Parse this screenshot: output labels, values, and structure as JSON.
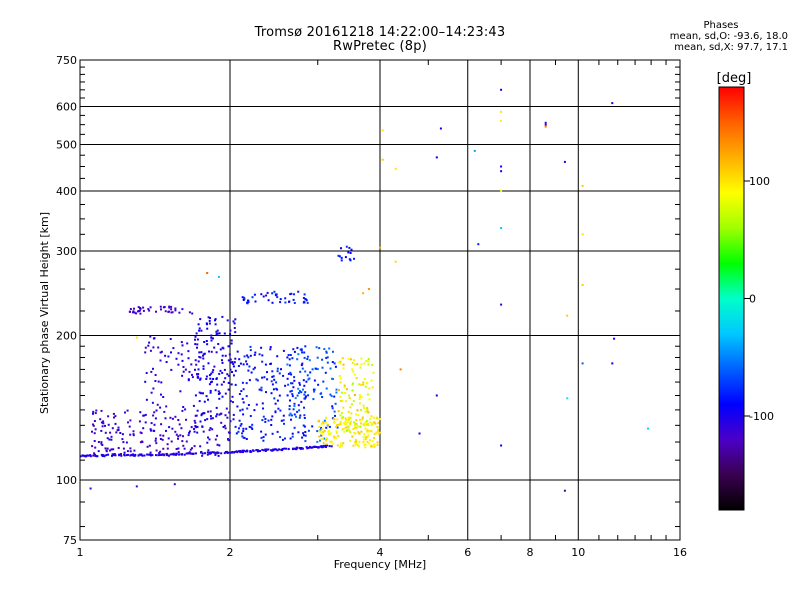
{
  "title": {
    "line1": "Tromsø 20161218 14:22:00–14:23:43",
    "line2": "RwPretec (8p)"
  },
  "phase": {
    "title": "Phases",
    "line1": "mean, sd,O: -93.6, 18.0",
    "line2": "mean, sd,X:  97.7, 17.1"
  },
  "colorbar": {
    "label": "[deg]",
    "ticks": [
      "100",
      "0",
      "-100"
    ],
    "tick_values": [
      100,
      0,
      -100
    ],
    "range": [
      -180,
      180
    ],
    "colors": [
      "#000000",
      "#3a004f",
      "#4b00c8",
      "#0000ff",
      "#0060ff",
      "#00c8ff",
      "#00ffc8",
      "#00ff00",
      "#a0ff00",
      "#ffff00",
      "#ffb000",
      "#ff6000",
      "#ff0000"
    ]
  },
  "chart_data": {
    "type": "scatter",
    "title": "Tromsø 20161218 14:22:00–14:23:43",
    "subtitle": "RwPretec (8p)",
    "xlabel": "Frequency [MHz]",
    "ylabel": "Stationary phase Virtual Height [km]",
    "xscale": "log",
    "yscale": "log",
    "xlim": [
      1,
      16
    ],
    "ylim": [
      75,
      750
    ],
    "xticks": [
      1,
      2,
      4,
      6,
      8,
      10,
      16
    ],
    "xtick_labels": [
      "1",
      "2",
      "4",
      "6",
      "8",
      "10",
      "16"
    ],
    "yticks": [
      75,
      100,
      200,
      300,
      400,
      500,
      600,
      750
    ],
    "ytick_labels": [
      "75",
      "100",
      "200",
      "300",
      "400",
      "500",
      "600",
      "750"
    ],
    "grid": true,
    "color_variable": "phase [deg]",
    "clusters": [
      {
        "x_range": [
          1.0,
          3.2
        ],
        "y_range": [
          112,
          118
        ],
        "phase_range": [
          -110,
          -95
        ],
        "n": 220,
        "trend": "rising"
      },
      {
        "x_range": [
          1.05,
          2.0
        ],
        "y_range": [
          112,
          140
        ],
        "phase_range": [
          -125,
          -100
        ],
        "n": 200
      },
      {
        "x_range": [
          1.35,
          1.75
        ],
        "y_range": [
          140,
          200
        ],
        "phase_range": [
          -115,
          -95
        ],
        "n": 70
      },
      {
        "x_range": [
          1.7,
          2.05
        ],
        "y_range": [
          125,
          220
        ],
        "phase_range": [
          -110,
          -90
        ],
        "n": 160
      },
      {
        "x_range": [
          2.05,
          2.85
        ],
        "y_range": [
          120,
          190
        ],
        "phase_range": [
          -100,
          -70
        ],
        "n": 170
      },
      {
        "x_range": [
          2.6,
          3.3
        ],
        "y_range": [
          120,
          190
        ],
        "phase_range": [
          -90,
          -50
        ],
        "n": 120
      },
      {
        "x_range": [
          3.0,
          4.0
        ],
        "y_range": [
          117,
          135
        ],
        "phase_range": [
          80,
          110
        ],
        "n": 160
      },
      {
        "x_range": [
          3.3,
          3.9
        ],
        "y_range": [
          125,
          180
        ],
        "phase_range": [
          60,
          120
        ],
        "n": 110
      },
      {
        "x_range": [
          1.25,
          1.7
        ],
        "y_range": [
          222,
          230
        ],
        "phase_range": [
          -120,
          -110
        ],
        "n": 40
      },
      {
        "x_range": [
          2.1,
          2.9
        ],
        "y_range": [
          233,
          247
        ],
        "phase_range": [
          -100,
          -70
        ],
        "n": 45
      },
      {
        "x_range": [
          3.3,
          3.55
        ],
        "y_range": [
          285,
          312
        ],
        "phase_range": [
          -95,
          -75
        ],
        "n": 14
      }
    ],
    "points": [
      {
        "x": 1.05,
        "y": 96,
        "phase": -110
      },
      {
        "x": 1.3,
        "y": 97,
        "phase": -115
      },
      {
        "x": 1.55,
        "y": 98,
        "phase": -120
      },
      {
        "x": 1.3,
        "y": 198,
        "phase": 100
      },
      {
        "x": 1.8,
        "y": 270,
        "phase": 150
      },
      {
        "x": 1.9,
        "y": 265,
        "phase": -30
      },
      {
        "x": 3.7,
        "y": 245,
        "phase": 120
      },
      {
        "x": 3.8,
        "y": 250,
        "phase": 130
      },
      {
        "x": 4.0,
        "y": 305,
        "phase": 120
      },
      {
        "x": 4.05,
        "y": 535,
        "phase": 100
      },
      {
        "x": 4.05,
        "y": 465,
        "phase": 110
      },
      {
        "x": 4.3,
        "y": 445,
        "phase": 100
      },
      {
        "x": 4.3,
        "y": 285,
        "phase": 105
      },
      {
        "x": 4.4,
        "y": 170,
        "phase": 140
      },
      {
        "x": 4.8,
        "y": 125,
        "phase": -100
      },
      {
        "x": 5.3,
        "y": 540,
        "phase": -95
      },
      {
        "x": 5.2,
        "y": 470,
        "phase": -90
      },
      {
        "x": 5.2,
        "y": 150,
        "phase": -95
      },
      {
        "x": 6.2,
        "y": 485,
        "phase": -40
      },
      {
        "x": 6.3,
        "y": 310,
        "phase": -80
      },
      {
        "x": 7.0,
        "y": 650,
        "phase": -90
      },
      {
        "x": 7.0,
        "y": 585,
        "phase": 100
      },
      {
        "x": 7.0,
        "y": 560,
        "phase": 95
      },
      {
        "x": 7.0,
        "y": 450,
        "phase": -95
      },
      {
        "x": 7.0,
        "y": 440,
        "phase": -100
      },
      {
        "x": 7.0,
        "y": 400,
        "phase": 90
      },
      {
        "x": 7.0,
        "y": 335,
        "phase": -30
      },
      {
        "x": 7.0,
        "y": 232,
        "phase": -110
      },
      {
        "x": 7.0,
        "y": 118,
        "phase": -90
      },
      {
        "x": 8.6,
        "y": 555,
        "phase": -110
      },
      {
        "x": 8.6,
        "y": 550,
        "phase": -125
      },
      {
        "x": 8.6,
        "y": 545,
        "phase": 140
      },
      {
        "x": 9.4,
        "y": 460,
        "phase": -100
      },
      {
        "x": 9.5,
        "y": 220,
        "phase": 110
      },
      {
        "x": 9.5,
        "y": 148,
        "phase": -10
      },
      {
        "x": 9.4,
        "y": 95,
        "phase": -130
      },
      {
        "x": 10.2,
        "y": 410,
        "phase": 110
      },
      {
        "x": 10.2,
        "y": 325,
        "phase": 100
      },
      {
        "x": 10.2,
        "y": 255,
        "phase": 110
      },
      {
        "x": 10.2,
        "y": 175,
        "phase": -60
      },
      {
        "x": 11.7,
        "y": 610,
        "phase": -100
      },
      {
        "x": 11.8,
        "y": 197,
        "phase": -95
      },
      {
        "x": 11.7,
        "y": 175,
        "phase": -90
      },
      {
        "x": 13.8,
        "y": 128,
        "phase": -20
      }
    ]
  }
}
